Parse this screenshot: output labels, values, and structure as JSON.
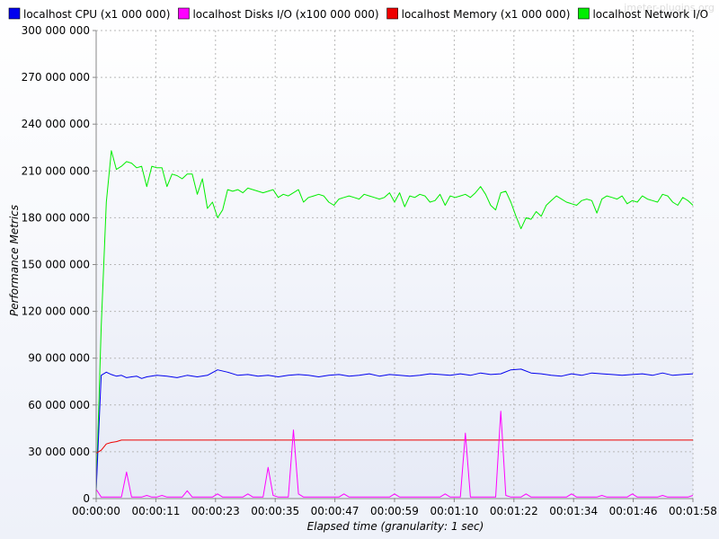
{
  "watermark": "jmeter-plugins.org",
  "chart_data": {
    "type": "line",
    "title": "",
    "xlabel": "Elapsed time (granularity: 1 sec)",
    "ylabel": "Performance Metrics",
    "xlim": [
      0,
      118
    ],
    "ylim": [
      0,
      300000000
    ],
    "grid": true,
    "legend_position": "top",
    "x_tick_labels": [
      "00:00:00",
      "00:00:11",
      "00:00:23",
      "00:00:35",
      "00:00:47",
      "00:00:59",
      "00:01:10",
      "00:01:22",
      "00:01:34",
      "00:01:46",
      "00:01:58"
    ],
    "x_tick_values": [
      0,
      11.8,
      23.6,
      35.4,
      47.2,
      59,
      70.8,
      82.6,
      94.4,
      106.2,
      118
    ],
    "y_tick_labels": [
      "0",
      "30 000 000",
      "60 000 000",
      "90 000 000",
      "120 000 000",
      "150 000 000",
      "180 000 000",
      "210 000 000",
      "240 000 000",
      "270 000 000",
      "300 000 000"
    ],
    "y_tick_values": [
      0,
      30000000,
      60000000,
      90000000,
      120000000,
      150000000,
      180000000,
      210000000,
      240000000,
      270000000,
      300000000
    ],
    "series": [
      {
        "name": "localhost CPU (x1 000 000)",
        "color": "#0000ee",
        "x": [
          0,
          1,
          2,
          3,
          4,
          5,
          6,
          7,
          8,
          9,
          10,
          12,
          14,
          16,
          18,
          20,
          22,
          24,
          26,
          28,
          30,
          32,
          34,
          36,
          38,
          40,
          42,
          44,
          46,
          48,
          50,
          52,
          54,
          56,
          58,
          60,
          62,
          64,
          66,
          68,
          70,
          72,
          74,
          76,
          78,
          80,
          82,
          84,
          86,
          88,
          90,
          92,
          94,
          96,
          98,
          100,
          102,
          104,
          106,
          108,
          110,
          112,
          114,
          116,
          118
        ],
        "values": [
          5000000,
          79000000,
          81000000,
          79500000,
          78500000,
          79000000,
          77500000,
          78000000,
          78500000,
          77000000,
          78000000,
          79000000,
          78500000,
          77500000,
          79000000,
          78000000,
          79000000,
          82500000,
          81000000,
          79000000,
          79500000,
          78500000,
          79000000,
          78000000,
          79000000,
          79500000,
          79000000,
          78000000,
          79000000,
          79500000,
          78500000,
          79000000,
          80000000,
          78500000,
          79500000,
          79000000,
          78500000,
          79000000,
          80000000,
          79500000,
          79000000,
          80000000,
          79000000,
          80500000,
          79500000,
          80000000,
          82500000,
          83000000,
          80500000,
          80000000,
          79000000,
          78500000,
          80000000,
          79000000,
          80500000,
          80000000,
          79500000,
          79000000,
          79500000,
          80000000,
          79000000,
          80500000,
          79000000,
          79500000,
          80000000
        ]
      },
      {
        "name": "localhost Disks I/O (x100 000 000)",
        "color": "#ff00ff",
        "x": [
          0,
          1,
          2,
          3,
          4,
          5,
          6,
          7,
          8,
          9,
          10,
          11,
          12,
          13,
          14,
          15,
          16,
          17,
          18,
          19,
          20,
          21,
          22,
          23,
          24,
          25,
          26,
          27,
          28,
          29,
          30,
          31,
          32,
          33,
          34,
          35,
          36,
          37,
          38,
          39,
          40,
          41,
          42,
          43,
          44,
          45,
          46,
          47,
          48,
          49,
          50,
          51,
          52,
          53,
          54,
          55,
          56,
          57,
          58,
          59,
          60,
          61,
          62,
          63,
          64,
          65,
          66,
          67,
          68,
          69,
          70,
          71,
          72,
          73,
          74,
          75,
          76,
          77,
          78,
          79,
          80,
          81,
          82,
          83,
          84,
          85,
          86,
          87,
          88,
          89,
          90,
          91,
          92,
          93,
          94,
          95,
          96,
          97,
          98,
          99,
          100,
          101,
          102,
          103,
          104,
          105,
          106,
          107,
          108,
          109,
          110,
          111,
          112,
          113,
          114,
          115,
          116,
          117,
          118
        ],
        "values": [
          6000000,
          1000000,
          1000000,
          1000000,
          1000000,
          1000000,
          17000000,
          1000000,
          1000000,
          1000000,
          2000000,
          1000000,
          1000000,
          2000000,
          1000000,
          1000000,
          1000000,
          1000000,
          5000000,
          1000000,
          1000000,
          1000000,
          1000000,
          1000000,
          3000000,
          1000000,
          1000000,
          1000000,
          1000000,
          1000000,
          3000000,
          1000000,
          1000000,
          1000000,
          20000000,
          2000000,
          1000000,
          1000000,
          1000000,
          44000000,
          3000000,
          1000000,
          1000000,
          1000000,
          1000000,
          1000000,
          1000000,
          1000000,
          1000000,
          3000000,
          1000000,
          1000000,
          1000000,
          1000000,
          1000000,
          1000000,
          1000000,
          1000000,
          1000000,
          3000000,
          1000000,
          1000000,
          1000000,
          1000000,
          1000000,
          1000000,
          1000000,
          1000000,
          1000000,
          3000000,
          1000000,
          1000000,
          1000000,
          42000000,
          1000000,
          1000000,
          1000000,
          1000000,
          1000000,
          1000000,
          56000000,
          2000000,
          1000000,
          1000000,
          1000000,
          3000000,
          1000000,
          1000000,
          1000000,
          1000000,
          1000000,
          1000000,
          1000000,
          1000000,
          3000000,
          1000000,
          1000000,
          1000000,
          1000000,
          1000000,
          2000000,
          1000000,
          1000000,
          1000000,
          1000000,
          1000000,
          3000000,
          1000000,
          1000000,
          1000000,
          1000000,
          1000000,
          2000000,
          1000000,
          1000000,
          1000000,
          1000000,
          1000000,
          2000000
        ]
      },
      {
        "name": "localhost Memory (x1 000 000)",
        "color": "#ee0000",
        "x": [
          0,
          1,
          2,
          3,
          4,
          5,
          118
        ],
        "values": [
          29000000,
          31000000,
          35000000,
          36000000,
          36500000,
          37500000,
          37500000
        ]
      },
      {
        "name": "localhost Network I/O",
        "color": "#00ee00",
        "x": [
          0,
          1,
          2,
          3,
          4,
          5,
          6,
          7,
          8,
          9,
          10,
          11,
          12,
          13,
          14,
          15,
          16,
          17,
          18,
          19,
          20,
          21,
          22,
          23,
          24,
          25,
          26,
          27,
          28,
          29,
          30,
          31,
          32,
          33,
          34,
          35,
          36,
          37,
          38,
          39,
          40,
          41,
          42,
          43,
          44,
          45,
          46,
          47,
          48,
          49,
          50,
          51,
          52,
          53,
          54,
          55,
          56,
          57,
          58,
          59,
          60,
          61,
          62,
          63,
          64,
          65,
          66,
          67,
          68,
          69,
          70,
          71,
          72,
          73,
          74,
          75,
          76,
          77,
          78,
          79,
          80,
          81,
          82,
          83,
          84,
          85,
          86,
          87,
          88,
          89,
          90,
          91,
          92,
          93,
          94,
          95,
          96,
          97,
          98,
          99,
          100,
          101,
          102,
          103,
          104,
          105,
          106,
          107,
          108,
          109,
          110,
          111,
          112,
          113,
          114,
          115,
          116,
          117,
          118
        ],
        "values": [
          5000000,
          110000000,
          190000000,
          223000000,
          211000000,
          213000000,
          216000000,
          215000000,
          212000000,
          213000000,
          200000000,
          213000000,
          212000000,
          212000000,
          200000000,
          208000000,
          207000000,
          205000000,
          208000000,
          208000000,
          195000000,
          205000000,
          186000000,
          190000000,
          180000000,
          185000000,
          198000000,
          197000000,
          198000000,
          196000000,
          199000000,
          198000000,
          197000000,
          196000000,
          197000000,
          198000000,
          193000000,
          195000000,
          194000000,
          196000000,
          198000000,
          190000000,
          193000000,
          194000000,
          195000000,
          194000000,
          190000000,
          188000000,
          192000000,
          193000000,
          194000000,
          193000000,
          192000000,
          195000000,
          194000000,
          193000000,
          192000000,
          193000000,
          196000000,
          190000000,
          196000000,
          187000000,
          194000000,
          193000000,
          195000000,
          194000000,
          190000000,
          191000000,
          195000000,
          188000000,
          194000000,
          193000000,
          194000000,
          195000000,
          193000000,
          196000000,
          200000000,
          195000000,
          188000000,
          185000000,
          196000000,
          197000000,
          190000000,
          181000000,
          173000000,
          180000000,
          179000000,
          184000000,
          181000000,
          188000000,
          191000000,
          194000000,
          192000000,
          190000000,
          189000000,
          188000000,
          191000000,
          192000000,
          191000000,
          183000000,
          192000000,
          194000000,
          193000000,
          192000000,
          194000000,
          189000000,
          191000000,
          190000000,
          194000000,
          192000000,
          191000000,
          190000000,
          195000000,
          194000000,
          190000000,
          188000000,
          193000000,
          191000000,
          188000000
        ]
      }
    ]
  }
}
